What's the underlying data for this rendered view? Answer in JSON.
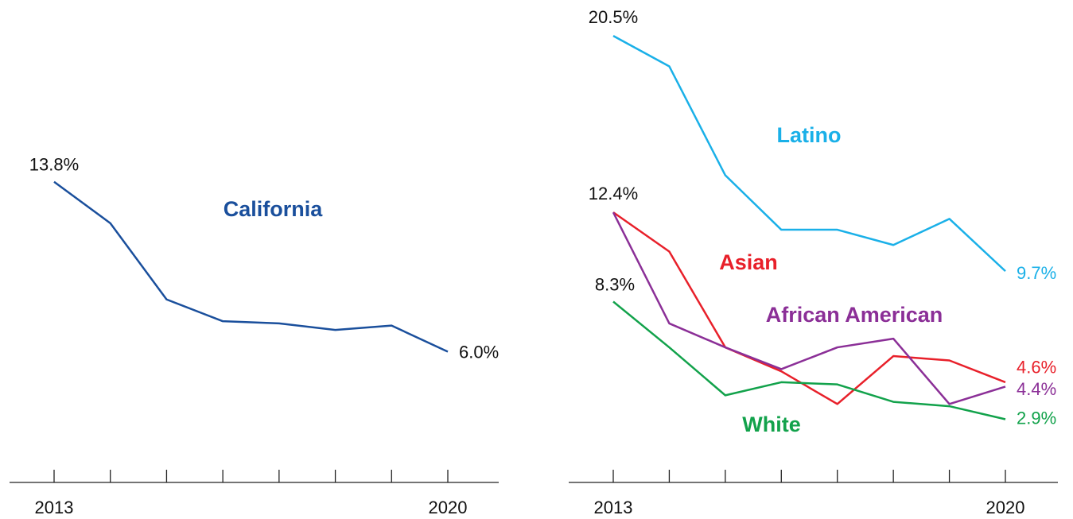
{
  "chart_data": [
    {
      "type": "line",
      "categories": [
        "2013",
        null,
        null,
        null,
        null,
        null,
        null,
        "2020"
      ],
      "ylim": [
        0,
        22
      ],
      "series": [
        {
          "name": "California",
          "color": "#1a4f9c",
          "values": [
            13.8,
            11.9,
            8.4,
            7.4,
            7.3,
            7.0,
            7.2,
            6.0
          ],
          "value_labels": [
            "13.8%",
            null,
            null,
            null,
            null,
            null,
            null,
            "6.0%"
          ]
        }
      ]
    },
    {
      "type": "line",
      "categories": [
        "2013",
        null,
        null,
        null,
        null,
        null,
        null,
        "2020"
      ],
      "ylim": [
        0,
        22
      ],
      "series": [
        {
          "name": "Latino",
          "color": "#1ab0e8",
          "values": [
            20.5,
            19.1,
            14.1,
            11.6,
            11.6,
            10.9,
            12.1,
            9.7
          ],
          "value_labels": [
            "20.5%",
            null,
            null,
            null,
            null,
            null,
            null,
            "9.7%"
          ]
        },
        {
          "name": "Asian",
          "color": "#e8202a",
          "values": [
            12.4,
            10.6,
            6.2,
            5.1,
            3.6,
            5.8,
            5.6,
            4.6
          ],
          "value_labels": [
            "12.4%",
            null,
            null,
            null,
            null,
            null,
            null,
            "4.6%"
          ]
        },
        {
          "name": "African American",
          "color": "#8b2f97",
          "values": [
            12.4,
            7.3,
            6.2,
            5.2,
            6.2,
            6.6,
            3.6,
            4.4
          ],
          "value_labels": [
            null,
            null,
            null,
            null,
            null,
            null,
            null,
            "4.4%"
          ]
        },
        {
          "name": "White",
          "color": "#12a24b",
          "values": [
            8.3,
            6.2,
            4.0,
            4.6,
            4.5,
            3.7,
            3.5,
            2.9
          ],
          "value_labels": [
            "8.3%",
            null,
            null,
            null,
            null,
            null,
            null,
            "2.9%"
          ]
        }
      ]
    }
  ]
}
